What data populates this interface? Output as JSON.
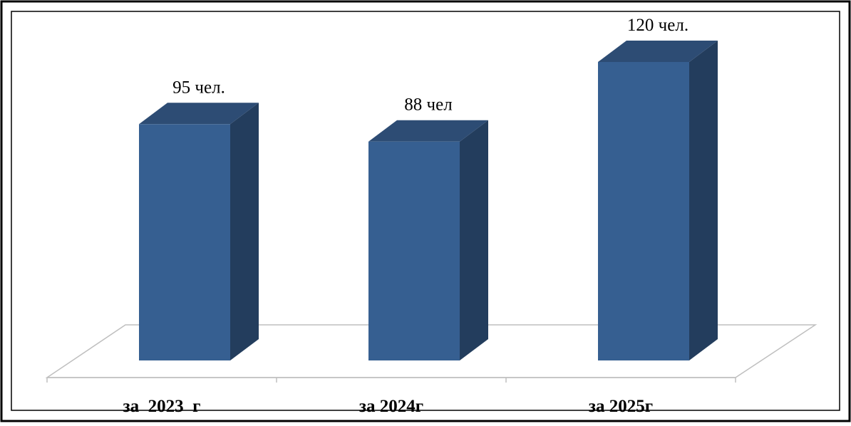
{
  "chart_data": {
    "type": "bar",
    "title": "",
    "xlabel": "",
    "ylabel": "",
    "categories": [
      "за  2023  г",
      "за 2024г",
      "за 2025г"
    ],
    "values": [
      95,
      88,
      120
    ],
    "data_labels": [
      "95 чел.",
      "88 чел",
      "120 чел."
    ],
    "ylim": [
      0,
      120
    ],
    "grid": false,
    "legend": "none",
    "style": "3d-column"
  },
  "colors": {
    "bar_front": "#365f91",
    "bar_top": "#2d4c74",
    "bar_side": "#233d5d",
    "floor_line": "#bfbfbf",
    "frame": "#000000"
  }
}
